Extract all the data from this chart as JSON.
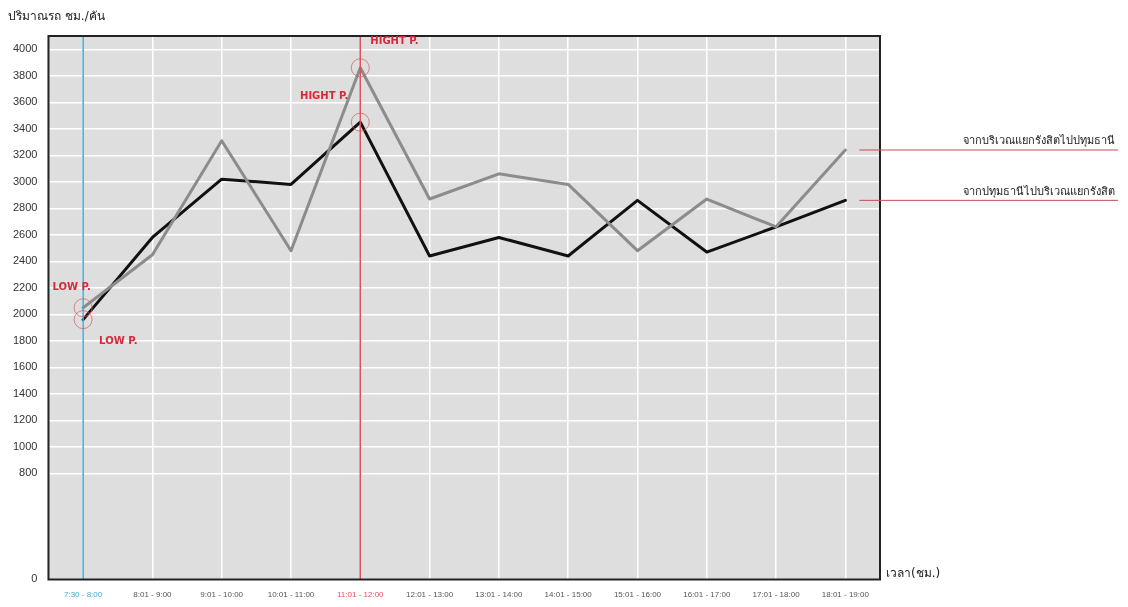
{
  "chart_data": {
    "type": "line",
    "ylabel": "ปริมาณรถ ชม./คัน",
    "xlabel": "เวลา(ชม.)",
    "categories": [
      "7:30 - 8:00",
      "8:01 - 9:00",
      "9:01 - 10:00",
      "10:01 - 11:00",
      "11:01 - 12:00",
      "12:01 - 13:00",
      "13:01 - 14:00",
      "14:01 - 15:00",
      "15:01 - 16:00",
      "16:01 - 17:00",
      "17:01 - 18:00",
      "18:01 - 19:00"
    ],
    "series": [
      {
        "name": "จากบริเวณแยกรังสิตไปปทุมธานี",
        "color": "#8c8c8c",
        "values": [
          2050,
          2450,
          3310,
          2480,
          3860,
          2870,
          3060,
          2980,
          2480,
          2870,
          2660,
          3240
        ]
      },
      {
        "name": "จากปทุมธานีไปบริเวณแยกรังสิต",
        "color": "#111111",
        "values": [
          1960,
          2580,
          3020,
          2980,
          3450,
          2440,
          2580,
          2440,
          2860,
          2470,
          2660,
          2860
        ]
      }
    ],
    "ylim": [
      0,
      4100
    ],
    "yticks": [
      0,
      800,
      1000,
      1200,
      1400,
      1600,
      1800,
      2000,
      2200,
      2400,
      2600,
      2800,
      3000,
      3200,
      3400,
      3600,
      3800,
      4000
    ],
    "ref_lines": [
      {
        "axis": "x",
        "value": "7:30 - 8:00",
        "color": "#3fa9d6"
      },
      {
        "axis": "x",
        "value": "11:01 - 12:00",
        "color": "#e0505a"
      }
    ],
    "annotations": [
      {
        "text": "LOW P.",
        "x": "7:30 - 8:00",
        "y": 2050
      },
      {
        "text": "LOW P.",
        "x": "7:30 - 8:00",
        "y": 1960
      },
      {
        "text": "HIGHT P.",
        "x": "11:01 - 12:00",
        "y": 3860
      },
      {
        "text": "HIGHT P.",
        "x": "11:01 - 12:00",
        "y": 3450
      }
    ],
    "grid": true,
    "legend": false,
    "marker": "none",
    "line_style": "solid"
  }
}
